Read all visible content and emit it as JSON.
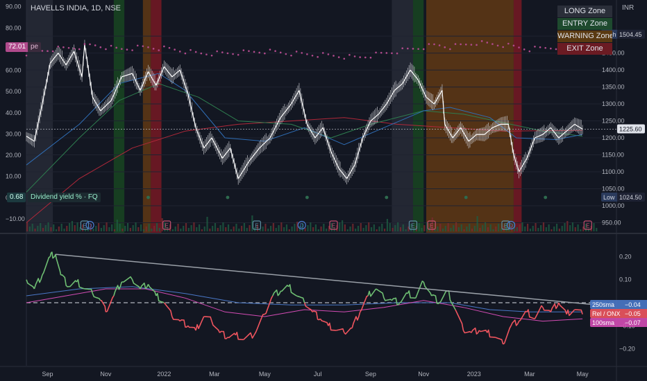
{
  "header": {
    "title": "HAVELLS INDIA, 1D, NSE",
    "currency": "INR"
  },
  "legend": {
    "long": "LONG Zone",
    "entry": "ENTRY Zone",
    "warning": "WARNING Zone",
    "exit": "EXIT Zone"
  },
  "indicators": {
    "pe_value": "72.01",
    "pe_label": "pe",
    "dividend_value": "0.68",
    "dividend_label": "Dividend yield % · FQ"
  },
  "colors": {
    "background": "#131722",
    "candle": "#c8cacf",
    "ma_blue": "#2f6db5",
    "ma_green": "#2e7d4f",
    "ma_red": "#b2283a",
    "rel_up": "#6fbf73",
    "rel_down": "#f0555f",
    "sma250": "#4a78c8",
    "sma100": "#d44cb5",
    "trendline": "#9aa0a8",
    "pe_dots": "#b04a8c",
    "zone_long": "#2a2e39",
    "zone_entry": "#1b5e20",
    "zone_warning": "#8a4b0c",
    "zone_exit": "#8b1a24"
  },
  "chart_data": [
    {
      "type": "candlestick",
      "title": "HAVELLS INDIA, 1D, NSE",
      "x": [
        "Sep",
        "Nov",
        "2022",
        "Mar",
        "May",
        "Jul",
        "Sep",
        "Nov",
        "2023",
        "Mar",
        "May"
      ],
      "right_axis": {
        "ticks": [
          950,
          1000,
          1050,
          1100,
          1150,
          1200,
          1250,
          1300,
          1350,
          1400,
          1450,
          1500
        ],
        "labels": [
          "950.00",
          "1000.00",
          "1050.00",
          "1100.00",
          "1150.00",
          "1200.00",
          "1250.00",
          "1300.00",
          "1350.00",
          "1400.00",
          "1450.00",
          "1500.00"
        ],
        "unit": "INR"
      },
      "left_axis": {
        "ticks": [
          -10,
          0,
          10,
          20,
          30,
          40,
          50,
          60,
          70,
          80,
          90
        ],
        "labels": [
          "−10.00",
          "0.00",
          "10.00",
          "20.00",
          "30.00",
          "40.00",
          "50.00",
          "60.00",
          "70.00",
          "80.00",
          "90.00"
        ]
      },
      "price_labels": {
        "high": "1504.45",
        "high_tag": "High",
        "last": "1225.60",
        "low": "1024.50",
        "low_tag": "Low"
      },
      "price_points": [
        [
          0,
          1205
        ],
        [
          3,
          1190
        ],
        [
          6,
          1300
        ],
        [
          9,
          1420
        ],
        [
          12,
          1450
        ],
        [
          15,
          1415
        ],
        [
          18,
          1455
        ],
        [
          21,
          1380
        ],
        [
          22,
          1475
        ],
        [
          25,
          1320
        ],
        [
          28,
          1280
        ],
        [
          32,
          1310
        ],
        [
          36,
          1380
        ],
        [
          40,
          1390
        ],
        [
          43,
          1340
        ],
        [
          46,
          1395
        ],
        [
          49,
          1355
        ],
        [
          52,
          1410
        ],
        [
          55,
          1380
        ],
        [
          58,
          1400
        ],
        [
          61,
          1330
        ],
        [
          64,
          1230
        ],
        [
          67,
          1170
        ],
        [
          70,
          1200
        ],
        [
          74,
          1140
        ],
        [
          77,
          1170
        ],
        [
          80,
          1080
        ],
        [
          84,
          1130
        ],
        [
          88,
          1170
        ],
        [
          92,
          1200
        ],
        [
          96,
          1260
        ],
        [
          100,
          1300
        ],
        [
          103,
          1340
        ],
        [
          106,
          1240
        ],
        [
          109,
          1200
        ],
        [
          112,
          1230
        ],
        [
          115,
          1160
        ],
        [
          118,
          1110
        ],
        [
          121,
          1080
        ],
        [
          124,
          1120
        ],
        [
          127,
          1200
        ],
        [
          130,
          1250
        ],
        [
          133,
          1270
        ],
        [
          136,
          1300
        ],
        [
          139,
          1340
        ],
        [
          142,
          1360
        ],
        [
          145,
          1400
        ],
        [
          148,
          1370
        ],
        [
          151,
          1320
        ],
        [
          154,
          1300
        ],
        [
          157,
          1340
        ],
        [
          158,
          1240
        ],
        [
          161,
          1200
        ],
        [
          164,
          1230
        ],
        [
          167,
          1190
        ],
        [
          170,
          1210
        ],
        [
          173,
          1210
        ],
        [
          176,
          1230
        ],
        [
          179,
          1240
        ],
        [
          182,
          1240
        ],
        [
          184,
          1150
        ],
        [
          186,
          1100
        ],
        [
          189,
          1140
        ],
        [
          192,
          1200
        ],
        [
          195,
          1210
        ],
        [
          198,
          1230
        ],
        [
          201,
          1200
        ],
        [
          204,
          1220
        ],
        [
          207,
          1240
        ],
        [
          210,
          1226
        ]
      ],
      "ma_blue_points": [
        [
          0,
          1120
        ],
        [
          20,
          1240
        ],
        [
          35,
          1360
        ],
        [
          50,
          1390
        ],
        [
          60,
          1340
        ],
        [
          75,
          1200
        ],
        [
          90,
          1190
        ],
        [
          105,
          1230
        ],
        [
          120,
          1180
        ],
        [
          135,
          1230
        ],
        [
          150,
          1280
        ],
        [
          160,
          1290
        ],
        [
          175,
          1260
        ],
        [
          185,
          1200
        ],
        [
          200,
          1195
        ],
        [
          210,
          1210
        ]
      ],
      "ma_green_points": [
        [
          0,
          1040
        ],
        [
          20,
          1200
        ],
        [
          35,
          1310
        ],
        [
          50,
          1360
        ],
        [
          65,
          1320
        ],
        [
          80,
          1250
        ],
        [
          100,
          1240
        ],
        [
          115,
          1200
        ],
        [
          130,
          1240
        ],
        [
          150,
          1280
        ],
        [
          165,
          1270
        ],
        [
          180,
          1245
        ],
        [
          195,
          1220
        ],
        [
          210,
          1205
        ]
      ],
      "ma_red_points": [
        [
          0,
          950
        ],
        [
          20,
          1080
        ],
        [
          40,
          1170
        ],
        [
          60,
          1220
        ],
        [
          80,
          1240
        ],
        [
          100,
          1250
        ],
        [
          120,
          1260
        ],
        [
          140,
          1240
        ],
        [
          160,
          1230
        ],
        [
          180,
          1220
        ],
        [
          210,
          1222
        ]
      ],
      "pe_points": [
        [
          0,
          68
        ],
        [
          10,
          70
        ],
        [
          20,
          71
        ],
        [
          25,
          72
        ],
        [
          35,
          70
        ],
        [
          45,
          71
        ],
        [
          55,
          70
        ],
        [
          65,
          68
        ],
        [
          75,
          68
        ],
        [
          90,
          69
        ],
        [
          100,
          68
        ],
        [
          115,
          67
        ],
        [
          125,
          66
        ],
        [
          140,
          69
        ],
        [
          155,
          72
        ],
        [
          160,
          71
        ],
        [
          170,
          73
        ],
        [
          180,
          72
        ],
        [
          190,
          70
        ],
        [
          200,
          71
        ],
        [
          210,
          72
        ]
      ],
      "dividend_dot_x": [
        46,
        76,
        106,
        136,
        166,
        196
      ],
      "zones": [
        {
          "kind": "long",
          "from": 0,
          "to": 10
        },
        {
          "kind": "entry",
          "from": 33,
          "to": 37
        },
        {
          "kind": "warning",
          "from": 44,
          "to": 47
        },
        {
          "kind": "exit",
          "from": 47,
          "to": 51
        },
        {
          "kind": "long",
          "from": 138,
          "to": 146
        },
        {
          "kind": "entry",
          "from": 146,
          "to": 150
        },
        {
          "kind": "warning",
          "from": 151,
          "to": 184
        },
        {
          "kind": "exit",
          "from": 184,
          "to": 187
        }
      ],
      "earnings_markers": [
        {
          "x": 22,
          "label": "E",
          "color": "#5d8fa3"
        },
        {
          "x": 24,
          "label": "D",
          "color": "#4a7ad0"
        },
        {
          "x": 53,
          "label": "E",
          "color": "#c2506f"
        },
        {
          "x": 87,
          "label": "E",
          "color": "#5d8fa3"
        },
        {
          "x": 104,
          "label": "D",
          "color": "#4a7ad0"
        },
        {
          "x": 116,
          "label": "E",
          "color": "#c2506f"
        },
        {
          "x": 146,
          "label": "E",
          "color": "#5d8fa3"
        },
        {
          "x": 153,
          "label": "E",
          "color": "#c2506f"
        },
        {
          "x": 181,
          "label": "E",
          "color": "#5d8fa3"
        },
        {
          "x": 183,
          "label": "D",
          "color": "#4a7ad0"
        },
        {
          "x": 212,
          "label": "E",
          "color": "#c2506f"
        }
      ]
    },
    {
      "type": "line",
      "x": [
        "Sep",
        "Nov",
        "2022",
        "Mar",
        "May",
        "Jul",
        "Sep",
        "Nov",
        "2023",
        "Mar",
        "May"
      ],
      "y_axis": {
        "ticks": [
          -0.2,
          -0.1,
          0,
          0.1,
          0.2
        ],
        "labels": [
          "−0.20",
          "−0.10",
          "",
          "0.10",
          "0.20"
        ]
      },
      "series_labels": [
        {
          "name": "250sma",
          "value": "−0.04",
          "color": "#4a78c8"
        },
        {
          "name": "Rel / ONX",
          "value": "−0.05",
          "color": "#f0555f"
        },
        {
          "name": "100sma",
          "value": "−0.07",
          "color": "#d44cb5"
        }
      ],
      "relative_points": [
        [
          0,
          0.1
        ],
        [
          3,
          0.06
        ],
        [
          6,
          0.12
        ],
        [
          9,
          0.2
        ],
        [
          11,
          0.21
        ],
        [
          13,
          0.12
        ],
        [
          16,
          0.07
        ],
        [
          19,
          0.09
        ],
        [
          22,
          0.06
        ],
        [
          25,
          0.04
        ],
        [
          28,
          0.01
        ],
        [
          30,
          -0.04
        ],
        [
          33,
          0.03
        ],
        [
          36,
          0.09
        ],
        [
          40,
          0.1
        ],
        [
          43,
          0.06
        ],
        [
          46,
          0.08
        ],
        [
          49,
          0.03
        ],
        [
          52,
          0.0
        ],
        [
          55,
          -0.06
        ],
        [
          58,
          -0.08
        ],
        [
          61,
          -0.1
        ],
        [
          64,
          -0.12
        ],
        [
          67,
          -0.06
        ],
        [
          70,
          -0.08
        ],
        [
          73,
          -0.13
        ],
        [
          76,
          -0.15
        ],
        [
          79,
          -0.14
        ],
        [
          82,
          -0.16
        ],
        [
          86,
          -0.14
        ],
        [
          90,
          -0.05
        ],
        [
          93,
          0.03
        ],
        [
          96,
          0.05
        ],
        [
          99,
          0.07
        ],
        [
          102,
          0.03
        ],
        [
          105,
          0.0
        ],
        [
          108,
          -0.04
        ],
        [
          111,
          -0.07
        ],
        [
          114,
          -0.1
        ],
        [
          117,
          -0.12
        ],
        [
          120,
          -0.13
        ],
        [
          123,
          -0.11
        ],
        [
          126,
          -0.04
        ],
        [
          129,
          0.03
        ],
        [
          132,
          0.06
        ],
        [
          135,
          0.02
        ],
        [
          138,
          0.01
        ],
        [
          141,
          0.0
        ],
        [
          144,
          0.04
        ],
        [
          147,
          0.02
        ],
        [
          150,
          0.09
        ],
        [
          153,
          0.03
        ],
        [
          156,
          0.0
        ],
        [
          159,
          0.05
        ],
        [
          162,
          -0.03
        ],
        [
          165,
          -0.12
        ],
        [
          168,
          -0.13
        ],
        [
          171,
          -0.12
        ],
        [
          174,
          -0.13
        ],
        [
          177,
          -0.15
        ],
        [
          180,
          -0.18
        ],
        [
          183,
          -0.1
        ],
        [
          186,
          -0.08
        ],
        [
          189,
          -0.04
        ],
        [
          192,
          -0.07
        ],
        [
          195,
          -0.02
        ],
        [
          198,
          -0.04
        ],
        [
          201,
          0.0
        ],
        [
          204,
          -0.05
        ],
        [
          207,
          -0.03
        ],
        [
          210,
          -0.05
        ]
      ],
      "sma250_points": [
        [
          0,
          0.03
        ],
        [
          20,
          0.06
        ],
        [
          40,
          0.07
        ],
        [
          60,
          0.04
        ],
        [
          80,
          0.0
        ],
        [
          100,
          -0.01
        ],
        [
          120,
          -0.01
        ],
        [
          140,
          0.0
        ],
        [
          160,
          0.0
        ],
        [
          175,
          -0.03
        ],
        [
          190,
          -0.04
        ],
        [
          210,
          -0.04
        ]
      ],
      "sma100_points": [
        [
          0,
          0.0
        ],
        [
          15,
          0.03
        ],
        [
          30,
          0.06
        ],
        [
          45,
          0.06
        ],
        [
          60,
          0.02
        ],
        [
          75,
          -0.04
        ],
        [
          90,
          -0.06
        ],
        [
          105,
          -0.03
        ],
        [
          120,
          -0.04
        ],
        [
          135,
          -0.02
        ],
        [
          150,
          0.01
        ],
        [
          165,
          -0.02
        ],
        [
          180,
          -0.06
        ],
        [
          195,
          -0.08
        ],
        [
          210,
          -0.07
        ]
      ],
      "trendline": [
        [
          11,
          0.21
        ],
        [
          216,
          -0.01
        ]
      ]
    }
  ]
}
